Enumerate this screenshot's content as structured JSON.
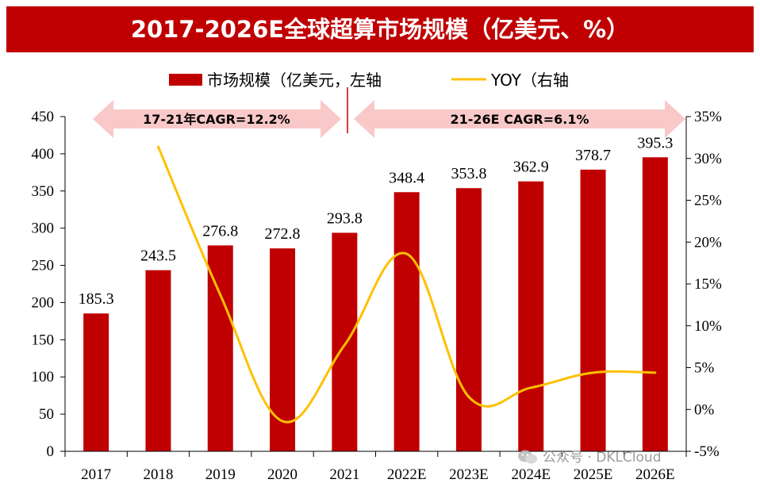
{
  "header": {
    "title": "2017-2026E全球超算市场规模（亿美元、%）"
  },
  "chart_data": {
    "type": "bar",
    "title": "2017-2026E全球超算市场规模（亿美元、%）",
    "categories": [
      "2017",
      "2018",
      "2019",
      "2020",
      "2021",
      "2022E",
      "2023E",
      "2024E",
      "2025E",
      "2026E"
    ],
    "series": [
      {
        "name": "市场规模（亿美元，左轴",
        "type": "bar",
        "axis": "left",
        "color": "#c00000",
        "values": [
          185.3,
          243.5,
          276.8,
          272.8,
          293.8,
          348.4,
          353.8,
          362.9,
          378.7,
          395.3
        ],
        "labels": [
          "185.3",
          "243.5",
          "276.8",
          "272.8",
          "293.8",
          "348.4",
          "353.8",
          "362.9",
          "378.7",
          "395.3"
        ]
      },
      {
        "name": "YOY（右轴",
        "type": "line",
        "axis": "right",
        "color": "#ffc000",
        "values": [
          null,
          31.4,
          13.7,
          -1.4,
          7.7,
          18.6,
          1.5,
          2.6,
          4.4,
          4.4
        ]
      }
    ],
    "left_axis": {
      "min": 0,
      "max": 450,
      "step": 50,
      "ticks": [
        "0",
        "50",
        "100",
        "150",
        "200",
        "250",
        "300",
        "350",
        "400",
        "450"
      ]
    },
    "right_axis": {
      "min": -5,
      "max": 35,
      "step": 5,
      "ticks": [
        "-5%",
        "0%",
        "5%",
        "10%",
        "15%",
        "20%",
        "25%",
        "30%",
        "35%"
      ]
    },
    "annotations": [
      {
        "text": "17-21年CAGR=12.2%",
        "from": "2017",
        "to": "2021"
      },
      {
        "text": "21-26E CAGR=6.1%",
        "from": "2021",
        "to": "2026E"
      }
    ],
    "legend_position": "top-center"
  },
  "watermark": {
    "text": "公众号 · DKLCloud"
  }
}
